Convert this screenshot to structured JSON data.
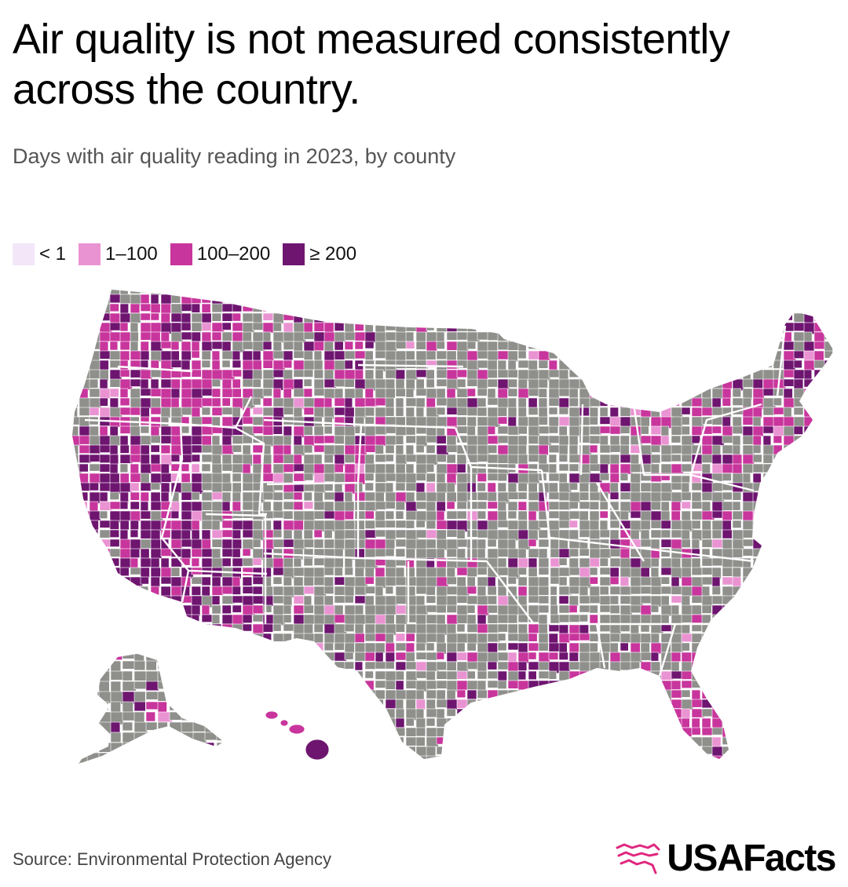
{
  "header": {
    "title": "Air quality is not measured consistently across the country.",
    "subtitle": "Days with air quality reading in 2023, by county"
  },
  "legend": [
    {
      "label": "< 1",
      "color": "#f3e6f8"
    },
    {
      "label": "1–100",
      "color": "#ea93d2"
    },
    {
      "label": "100–200",
      "color": "#c8359c"
    },
    {
      "label": "≥ 200",
      "color": "#6e1570"
    }
  ],
  "map": {
    "no_data_color": "#8f8f8c",
    "border_color": "#ffffff",
    "high_coverage_regions": [
      "California",
      "Arizona",
      "Nevada",
      "Utah",
      "Pacific Northwest",
      "Hawaii",
      "Maine",
      "Louisiana",
      "Florida",
      "Northeast"
    ]
  },
  "footer": {
    "source": "Source: Environmental Protection Agency",
    "brand": "USAFacts"
  }
}
